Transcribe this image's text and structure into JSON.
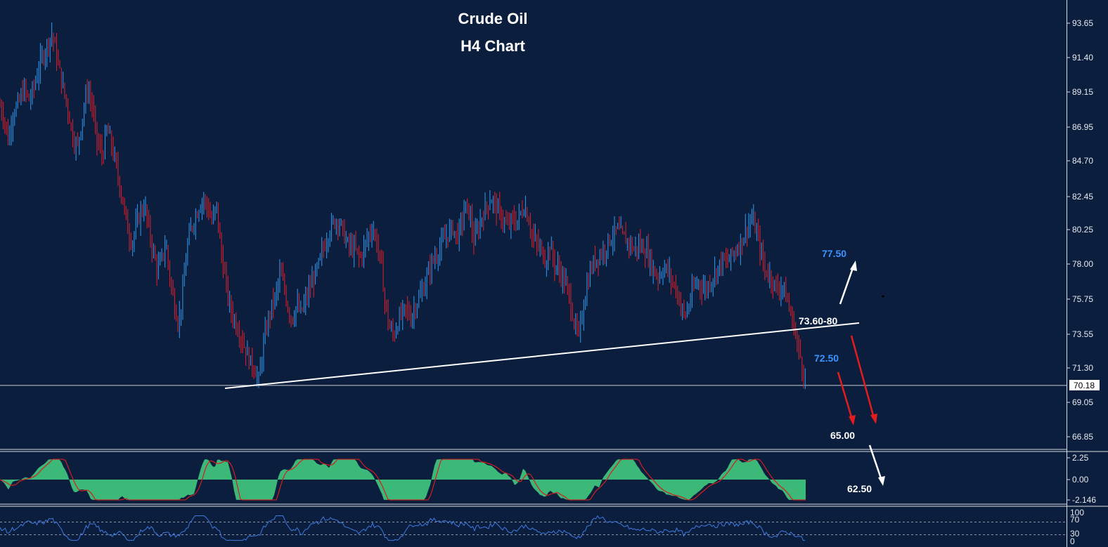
{
  "title": "Crude Oil",
  "subtitle": "H4 Chart",
  "colors": {
    "background": "#0b1e3d",
    "bull_candle": "#2f8fe0",
    "bear_candle": "#d0202e",
    "macd_histogram": "#3cb878",
    "macd_signal": "#d41e1e",
    "rsi_line": "#3f7ae0",
    "trendline": "#ffffff",
    "target_up_label": "#3a93ff",
    "arrow_down": "#e21d1d",
    "arrow_up": "#ffffff"
  },
  "chart_data": [
    {
      "type": "line",
      "panel": "price",
      "description_note": "",
      "y_axis_ticks": [
        "93.65",
        "91.40",
        "89.15",
        "86.95",
        "84.70",
        "82.45",
        "80.25",
        "78.00",
        "75.75",
        "73.55",
        "71.30",
        "69.05",
        "66.85"
      ],
      "ylim": [
        65.8,
        94.5
      ],
      "current_price": "70.18",
      "price_path": [
        [
          0,
          88.3
        ],
        [
          6,
          87.5
        ],
        [
          12,
          86.0
        ],
        [
          18,
          87.8
        ],
        [
          26,
          88.4
        ],
        [
          34,
          89.4
        ],
        [
          42,
          88.6
        ],
        [
          50,
          89.8
        ],
        [
          58,
          91.2
        ],
        [
          66,
          92.1
        ],
        [
          74,
          93.0
        ],
        [
          80,
          91.6
        ],
        [
          88,
          89.8
        ],
        [
          96,
          88.2
        ],
        [
          104,
          86.2
        ],
        [
          110,
          85.6
        ],
        [
          118,
          87.8
        ],
        [
          124,
          89.4
        ],
        [
          130,
          88.6
        ],
        [
          138,
          86.0
        ],
        [
          146,
          85.0
        ],
        [
          152,
          86.8
        ],
        [
          158,
          85.9
        ],
        [
          164,
          84.6
        ],
        [
          170,
          83.2
        ],
        [
          176,
          81.8
        ],
        [
          182,
          80.2
        ],
        [
          188,
          79.4
        ],
        [
          194,
          80.6
        ],
        [
          200,
          81.4
        ],
        [
          206,
          81.8
        ],
        [
          212,
          80.2
        ],
        [
          218,
          78.8
        ],
        [
          224,
          77.6
        ],
        [
          230,
          78.4
        ],
        [
          236,
          79.4
        ],
        [
          242,
          77.0
        ],
        [
          248,
          75.4
        ],
        [
          254,
          74.2
        ],
        [
          260,
          76.2
        ],
        [
          266,
          79.1
        ],
        [
          272,
          80.4
        ],
        [
          278,
          81.1
        ],
        [
          284,
          81.9
        ],
        [
          290,
          82.3
        ],
        [
          296,
          81.6
        ],
        [
          302,
          80.7
        ],
        [
          308,
          81.9
        ],
        [
          314,
          78.9
        ],
        [
          320,
          77.2
        ],
        [
          326,
          75.4
        ],
        [
          332,
          74.6
        ],
        [
          338,
          73.9
        ],
        [
          344,
          73.2
        ],
        [
          350,
          72.4
        ],
        [
          356,
          71.7
        ],
        [
          362,
          71.3
        ],
        [
          368,
          70.4
        ],
        [
          374,
          72.6
        ],
        [
          380,
          74.1
        ],
        [
          386,
          75.3
        ],
        [
          392,
          75.9
        ],
        [
          398,
          77.4
        ],
        [
          404,
          76.6
        ],
        [
          410,
          75.1
        ],
        [
          416,
          74.5
        ],
        [
          422,
          75.4
        ],
        [
          428,
          74.8
        ],
        [
          434,
          75.6
        ],
        [
          440,
          76.4
        ],
        [
          446,
          77.1
        ],
        [
          452,
          77.8
        ],
        [
          458,
          78.8
        ],
        [
          464,
          79.6
        ],
        [
          470,
          80.4
        ],
        [
          476,
          80.8
        ],
        [
          482,
          80.9
        ],
        [
          488,
          80.1
        ],
        [
          494,
          79.3
        ],
        [
          500,
          79.1
        ],
        [
          506,
          78.9
        ],
        [
          512,
          78.4
        ],
        [
          518,
          79.1
        ],
        [
          524,
          79.9
        ],
        [
          530,
          80.4
        ],
        [
          536,
          79.4
        ],
        [
          542,
          78.1
        ],
        [
          548,
          75.4
        ],
        [
          554,
          73.9
        ],
        [
          560,
          73.4
        ],
        [
          566,
          74.3
        ],
        [
          572,
          74.8
        ],
        [
          578,
          75.2
        ],
        [
          584,
          74.5
        ],
        [
          590,
          75.3
        ],
        [
          596,
          75.8
        ],
        [
          602,
          76.4
        ],
        [
          608,
          77.3
        ],
        [
          614,
          78.1
        ],
        [
          620,
          78.6
        ],
        [
          626,
          79.1
        ],
        [
          632,
          79.6
        ],
        [
          638,
          80.1
        ],
        [
          644,
          80.4
        ],
        [
          650,
          79.8
        ],
        [
          656,
          80.6
        ],
        [
          662,
          81.8
        ],
        [
          668,
          81.3
        ],
        [
          674,
          79.5
        ],
        [
          680,
          80.3
        ],
        [
          686,
          81.2
        ],
        [
          692,
          81.8
        ],
        [
          698,
          82.3
        ],
        [
          704,
          81.9
        ],
        [
          710,
          81.3
        ],
        [
          716,
          80.9
        ],
        [
          722,
          80.4
        ],
        [
          728,
          80.9
        ],
        [
          734,
          80.7
        ],
        [
          740,
          81.3
        ],
        [
          746,
          81.8
        ],
        [
          752,
          80.9
        ],
        [
          758,
          79.7
        ],
        [
          764,
          79.3
        ],
        [
          770,
          78.9
        ],
        [
          776,
          78.2
        ],
        [
          782,
          79.3
        ],
        [
          788,
          78.1
        ],
        [
          794,
          77.7
        ],
        [
          800,
          77.2
        ],
        [
          806,
          76.6
        ],
        [
          812,
          75.4
        ],
        [
          818,
          73.9
        ],
        [
          824,
          73.4
        ],
        [
          830,
          75.4
        ],
        [
          836,
          76.9
        ],
        [
          842,
          77.9
        ],
        [
          848,
          78.4
        ],
        [
          854,
          78.7
        ],
        [
          860,
          79.0
        ],
        [
          866,
          79.6
        ],
        [
          872,
          79.9
        ],
        [
          878,
          80.3
        ],
        [
          884,
          79.9
        ],
        [
          890,
          79.6
        ],
        [
          896,
          79.4
        ],
        [
          902,
          78.9
        ],
        [
          908,
          79.3
        ],
        [
          914,
          79.1
        ],
        [
          920,
          78.8
        ],
        [
          926,
          78.1
        ],
        [
          932,
          77.4
        ],
        [
          938,
          77.3
        ],
        [
          944,
          77.8
        ],
        [
          950,
          77.6
        ],
        [
          956,
          76.9
        ],
        [
          962,
          76.4
        ],
        [
          968,
          75.4
        ],
        [
          974,
          74.6
        ],
        [
          980,
          75.4
        ],
        [
          986,
          76.4
        ],
        [
          992,
          76.9
        ],
        [
          998,
          76.6
        ],
        [
          1004,
          76.4
        ],
        [
          1010,
          76.9
        ],
        [
          1016,
          77.4
        ],
        [
          1022,
          77.9
        ],
        [
          1028,
          78.3
        ],
        [
          1034,
          78.1
        ],
        [
          1040,
          78.6
        ],
        [
          1046,
          78.9
        ],
        [
          1052,
          79.3
        ],
        [
          1058,
          79.9
        ],
        [
          1064,
          80.6
        ],
        [
          1070,
          80.9
        ],
        [
          1076,
          80.1
        ],
        [
          1082,
          78.9
        ],
        [
          1088,
          77.6
        ],
        [
          1094,
          77.4
        ],
        [
          1100,
          76.9
        ],
        [
          1106,
          76.3
        ],
        [
          1112,
          76.8
        ],
        [
          1118,
          75.9
        ],
        [
          1124,
          74.9
        ],
        [
          1130,
          73.9
        ],
        [
          1136,
          72.4
        ],
        [
          1140,
          71.8
        ],
        [
          1144,
          70.6
        ],
        [
          1146,
          70.18
        ]
      ]
    },
    {
      "type": "area",
      "panel": "macd",
      "y_axis_ticks": [
        "2.25",
        "0.00",
        "-2.146"
      ],
      "ylim": [
        -2.3,
        2.5
      ],
      "series": []
    },
    {
      "type": "line",
      "panel": "rsi",
      "y_axis_ticks": [
        "100",
        "70",
        "30",
        "0"
      ],
      "ylim": [
        0,
        100
      ],
      "series": []
    }
  ],
  "levels": {
    "neckline_label": "73.60-80",
    "target_up": "77.50",
    "target_mid": "72.50",
    "target_down1": "65.00",
    "target_down2": "62.50"
  }
}
